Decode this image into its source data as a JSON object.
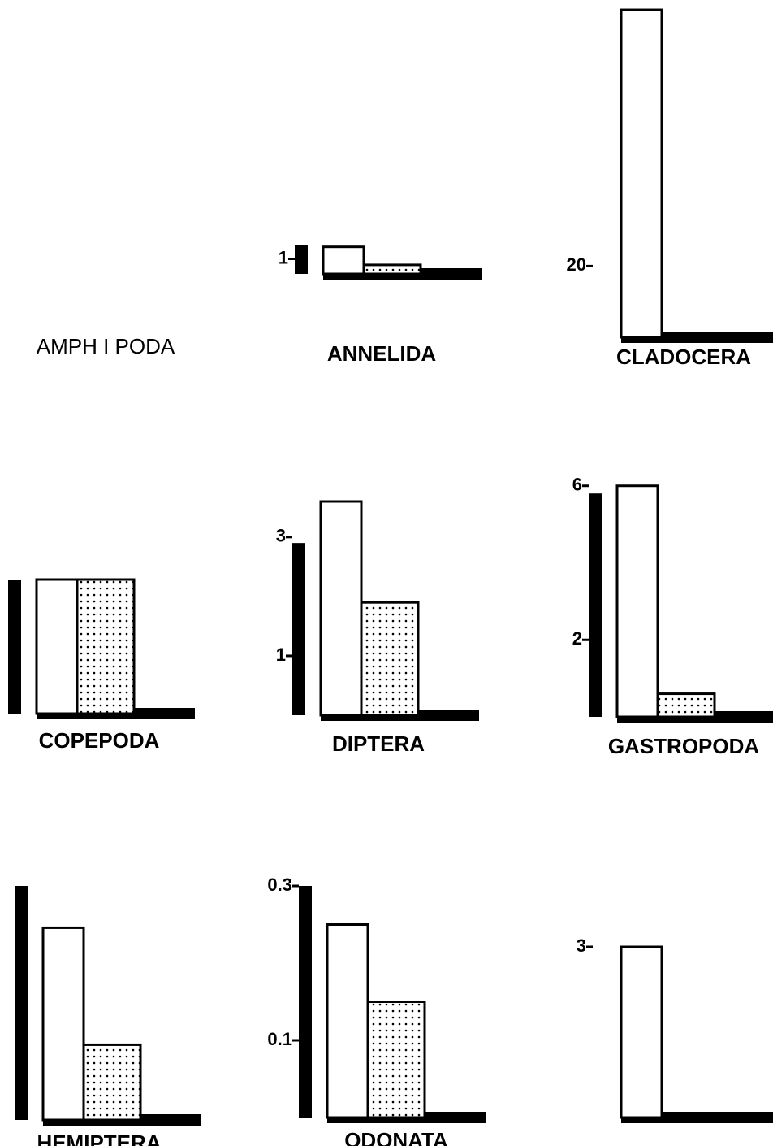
{
  "chart_data": [
    {
      "type": "bar",
      "title": "AMPH I PODA"
    },
    {
      "type": "bar",
      "title": "ANNELIDA",
      "categories": [
        null,
        null,
        null
      ],
      "values": [
        1.9,
        1.8,
        0.6
      ],
      "ylim": [
        0,
        2
      ],
      "yticks": [
        1
      ]
    },
    {
      "type": "bar",
      "title": "CLADOCERA",
      "categories": [
        null,
        null,
        null
      ],
      "values": [
        0,
        92,
        0
      ],
      "ylim": [
        0,
        100
      ],
      "yticks": [
        20
      ]
    },
    {
      "type": "bar",
      "title": "COPEPODA",
      "categories": [
        null,
        null,
        null
      ],
      "values": [
        1.2,
        1.2,
        1.2
      ],
      "ylim": [
        0,
        1.2
      ],
      "yticks": []
    },
    {
      "type": "bar",
      "title": "DIPTERA",
      "categories": [
        null,
        null,
        null
      ],
      "values": [
        2.9,
        3.6,
        1.9
      ],
      "ylim": [
        0,
        3.6
      ],
      "yticks": [
        1,
        3
      ]
    },
    {
      "type": "bar",
      "title": "GASTROPODA",
      "categories": [
        null,
        null,
        null
      ],
      "values": [
        5.8,
        6,
        0.6
      ],
      "ylim": [
        0,
        6.1
      ],
      "yticks": [
        2,
        6
      ]
    },
    {
      "type": "bar",
      "title": "HEMIPTERA",
      "categories": [
        null,
        null,
        null
      ],
      "values": [
        11.2,
        9.2,
        3.6
      ],
      "ylim": [
        0,
        11.2
      ],
      "yticks": []
    },
    {
      "type": "bar",
      "title": "ODONATA",
      "categories": [
        null,
        null,
        null
      ],
      "values": [
        0.3,
        0.25,
        0.15
      ],
      "ylim": [
        0,
        0.3
      ],
      "yticks": [
        0.1,
        0.3
      ]
    },
    {
      "type": "bar",
      "categories": [
        null,
        null,
        null
      ],
      "values": [
        0,
        3,
        0
      ],
      "ylim": [
        0,
        3
      ],
      "yticks": [
        3
      ]
    }
  ]
}
